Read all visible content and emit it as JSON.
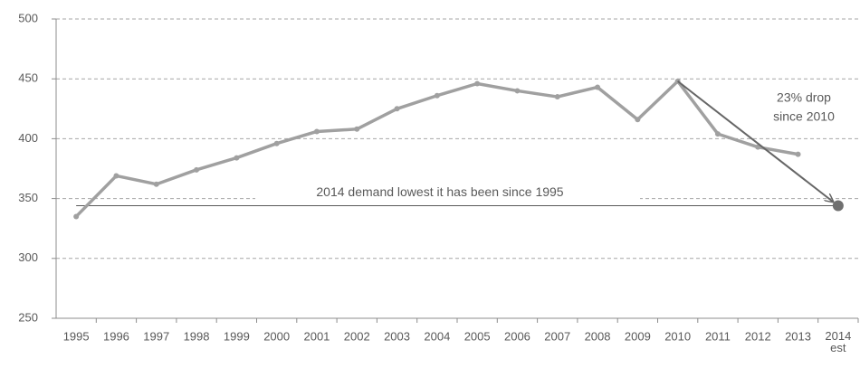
{
  "chart_data": {
    "type": "line",
    "categories": [
      "1995",
      "1996",
      "1997",
      "1998",
      "1999",
      "2000",
      "2001",
      "2002",
      "2003",
      "2004",
      "2005",
      "2006",
      "2007",
      "2008",
      "2009",
      "2010",
      "2011",
      "2012",
      "2013",
      "2014 est"
    ],
    "values": [
      335,
      369,
      362,
      374,
      384,
      396,
      406,
      408,
      425,
      436,
      446,
      440,
      435,
      443,
      416,
      448,
      404,
      393,
      387,
      null
    ],
    "estimate_values": [
      null,
      null,
      null,
      null,
      null,
      null,
      null,
      null,
      null,
      null,
      null,
      null,
      null,
      null,
      null,
      null,
      null,
      null,
      null,
      344
    ],
    "color": "#a0a0a0",
    "estimate_color": "#707070",
    "ylim": [
      250,
      500
    ],
    "yticks": [
      250,
      300,
      350,
      400,
      450,
      500
    ],
    "grid": true,
    "reference_line": 344,
    "reference_label": "2014 demand lowest it has been since 1995",
    "annotation": [
      "23% drop",
      "since 2010"
    ]
  }
}
